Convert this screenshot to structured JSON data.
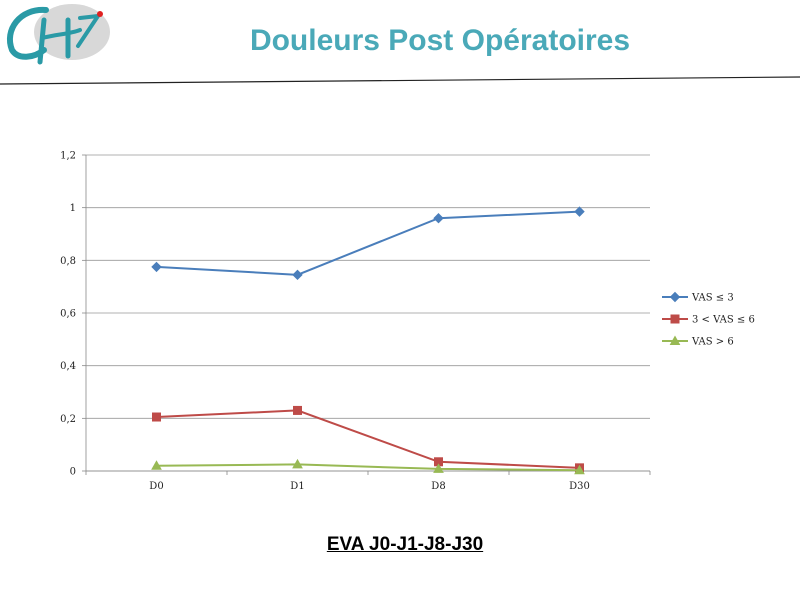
{
  "slide": {
    "title": "Douleurs Post Opératoires",
    "subtitle": "EVA J0-J1-J8-J30",
    "accent_color": "#4aa9b8",
    "logo_icon": "ch-logo-icon"
  },
  "chart_data": {
    "type": "line",
    "categories": [
      "D0",
      "D1",
      "D8",
      "D30"
    ],
    "ylim": [
      0,
      1.2
    ],
    "yticks": [
      "0",
      "0,2",
      "0,4",
      "0,6",
      "0,8",
      "1",
      "1,2"
    ],
    "grid": true,
    "legend_position": "right",
    "series": [
      {
        "name": "VAS ≤ 3",
        "values": [
          0.775,
          0.745,
          0.96,
          0.985
        ],
        "color": "#4a7ebb",
        "marker": "diamond"
      },
      {
        "name": "3 < VAS ≤ 6",
        "values": [
          0.205,
          0.23,
          0.035,
          0.012
        ],
        "color": "#be4b48",
        "marker": "square"
      },
      {
        "name": "VAS > 6",
        "values": [
          0.02,
          0.025,
          0.008,
          0.003
        ],
        "color": "#98b954",
        "marker": "triangle"
      }
    ]
  }
}
